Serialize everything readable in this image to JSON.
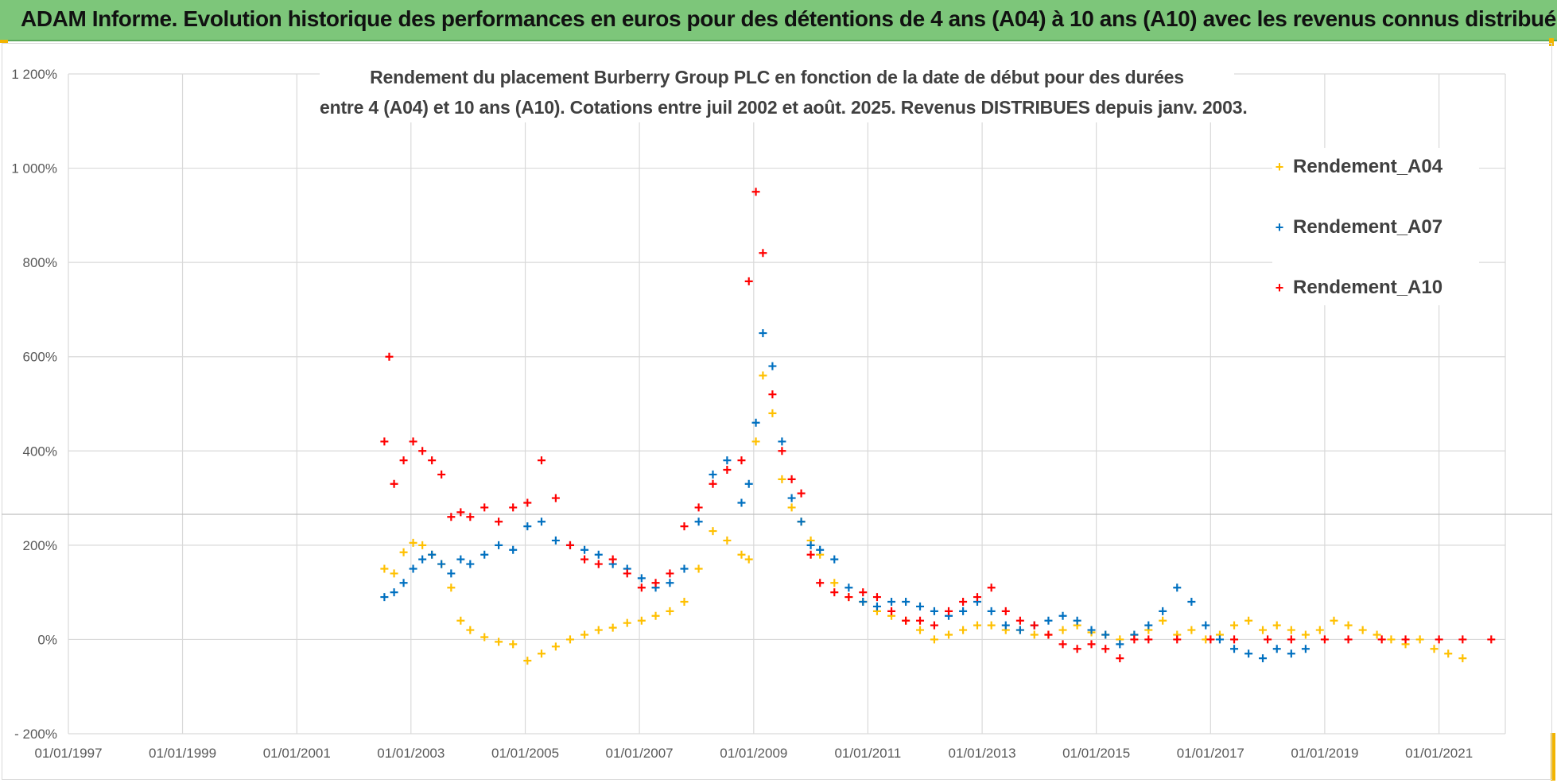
{
  "banner": {
    "title": "ADAM Informe. Evolution historique des performances en euros pour des détentions de 4 ans (A04) à 10 ans (A10) avec les revenus connus distribués"
  },
  "colors": {
    "banner_bg": "#7dc67a",
    "accent_corners": "#f2b400",
    "grid": "#d9d9d9",
    "axis_text": "#595959",
    "title_text": "#404040"
  },
  "chart_data": {
    "type": "scatter",
    "title_line1": "Rendement du placement Burberry Group PLC en fonction de la date de début pour des durées",
    "title_line2": "entre 4 (A04) et 10 ans (A10). Cotations entre juil 2002 et août. 2025. Revenus DISTRIBUES depuis janv. 2003.",
    "xlabel": "",
    "ylabel": "",
    "xlim": [
      "1997-01-01",
      "2022-03-01"
    ],
    "ylim": [
      -200,
      1200
    ],
    "ytick_values": [
      -200,
      0,
      200,
      400,
      600,
      800,
      1000,
      1200
    ],
    "yticks": [
      "- 200%",
      "0%",
      "200%",
      "400%",
      "600%",
      "800%",
      "1 000%",
      "1 200%"
    ],
    "xticks": [
      "01/01/1997",
      "01/01/1999",
      "01/01/2001",
      "01/01/2003",
      "01/01/2005",
      "01/01/2007",
      "01/01/2009",
      "01/01/2011",
      "01/01/2013",
      "01/01/2015",
      "01/01/2017",
      "01/01/2019",
      "01/01/2021"
    ],
    "xtick_dates": [
      "1997-01-01",
      "1999-01-01",
      "2001-01-01",
      "2003-01-01",
      "2005-01-01",
      "2007-01-01",
      "2009-01-01",
      "2011-01-01",
      "2013-01-01",
      "2015-01-01",
      "2017-01-01",
      "2019-01-01",
      "2021-01-01"
    ],
    "grid": true,
    "legend_position": "right",
    "marker": "+",
    "series": [
      {
        "name": "Rendement_A04",
        "color": "#ffc000",
        "x": [
          "2002-07-15",
          "2002-09-15",
          "2002-11-15",
          "2003-01-15",
          "2003-03-15",
          "2003-05-15",
          "2003-07-15",
          "2003-09-15",
          "2003-11-15",
          "2004-01-15",
          "2004-04-15",
          "2004-07-15",
          "2004-10-15",
          "2005-01-15",
          "2005-04-15",
          "2005-07-15",
          "2005-10-15",
          "2006-01-15",
          "2006-04-15",
          "2006-07-15",
          "2006-10-15",
          "2007-01-15",
          "2007-04-15",
          "2007-07-15",
          "2007-10-15",
          "2008-01-15",
          "2008-04-15",
          "2008-07-15",
          "2008-10-15",
          "2008-12-01",
          "2009-01-15",
          "2009-03-01",
          "2009-05-01",
          "2009-07-01",
          "2009-09-01",
          "2009-11-01",
          "2010-01-01",
          "2010-03-01",
          "2010-06-01",
          "2010-09-01",
          "2010-12-01",
          "2011-03-01",
          "2011-06-01",
          "2011-09-01",
          "2011-12-01",
          "2012-03-01",
          "2012-06-01",
          "2012-09-01",
          "2012-12-01",
          "2013-03-01",
          "2013-06-01",
          "2013-09-01",
          "2013-12-01",
          "2014-03-01",
          "2014-06-01",
          "2014-09-01",
          "2014-12-01",
          "2015-03-01",
          "2015-06-01",
          "2015-09-01",
          "2015-12-01",
          "2016-03-01",
          "2016-06-01",
          "2016-09-01",
          "2016-12-01",
          "2017-03-01",
          "2017-06-01",
          "2017-09-01",
          "2017-12-01",
          "2018-03-01",
          "2018-06-01",
          "2018-09-01",
          "2018-12-01",
          "2019-03-01",
          "2019-06-01",
          "2019-09-01",
          "2019-12-01",
          "2020-03-01",
          "2020-06-01",
          "2020-09-01",
          "2020-12-01",
          "2021-03-01",
          "2021-06-01"
        ],
        "y": [
          150,
          140,
          185,
          205,
          200,
          180,
          160,
          110,
          40,
          20,
          5,
          -5,
          -10,
          -45,
          -30,
          -15,
          0,
          10,
          20,
          25,
          35,
          40,
          50,
          60,
          80,
          150,
          230,
          210,
          180,
          170,
          420,
          560,
          480,
          340,
          280,
          250,
          210,
          180,
          120,
          90,
          80,
          60,
          50,
          40,
          20,
          0,
          10,
          20,
          30,
          30,
          20,
          20,
          10,
          10,
          20,
          30,
          15,
          10,
          0,
          10,
          20,
          40,
          10,
          20,
          0,
          10,
          30,
          40,
          20,
          30,
          20,
          10,
          20,
          40,
          30,
          20,
          10,
          0,
          -10,
          0,
          -20,
          -30,
          -40
        ]
      },
      {
        "name": "Rendement_A07",
        "color": "#0070c0",
        "x": [
          "2002-07-15",
          "2002-09-15",
          "2002-11-15",
          "2003-01-15",
          "2003-03-15",
          "2003-05-15",
          "2003-07-15",
          "2003-09-15",
          "2003-11-15",
          "2004-01-15",
          "2004-04-15",
          "2004-07-15",
          "2004-10-15",
          "2005-01-15",
          "2005-04-15",
          "2005-07-15",
          "2005-10-15",
          "2006-01-15",
          "2006-04-15",
          "2006-07-15",
          "2006-10-15",
          "2007-01-15",
          "2007-04-15",
          "2007-07-15",
          "2007-10-15",
          "2008-01-15",
          "2008-04-15",
          "2008-07-15",
          "2008-10-15",
          "2008-12-01",
          "2009-01-15",
          "2009-03-01",
          "2009-05-01",
          "2009-07-01",
          "2009-09-01",
          "2009-11-01",
          "2010-01-01",
          "2010-03-01",
          "2010-06-01",
          "2010-09-01",
          "2010-12-01",
          "2011-03-01",
          "2011-06-01",
          "2011-09-01",
          "2011-12-01",
          "2012-03-01",
          "2012-06-01",
          "2012-09-01",
          "2012-12-01",
          "2013-03-01",
          "2013-06-01",
          "2013-09-01",
          "2013-12-01",
          "2014-03-01",
          "2014-06-01",
          "2014-09-01",
          "2014-12-01",
          "2015-03-01",
          "2015-06-01",
          "2015-09-01",
          "2015-12-01",
          "2016-03-01",
          "2016-06-01",
          "2016-09-01",
          "2016-12-01",
          "2017-03-01",
          "2017-06-01",
          "2017-09-01",
          "2017-12-01",
          "2018-03-01",
          "2018-06-01",
          "2018-09-01"
        ],
        "y": [
          90,
          100,
          120,
          150,
          170,
          180,
          160,
          140,
          170,
          160,
          180,
          200,
          190,
          240,
          250,
          210,
          200,
          190,
          180,
          160,
          150,
          130,
          110,
          120,
          150,
          250,
          350,
          380,
          290,
          330,
          460,
          650,
          580,
          420,
          300,
          250,
          200,
          190,
          170,
          110,
          80,
          70,
          80,
          80,
          70,
          60,
          50,
          60,
          80,
          60,
          30,
          20,
          30,
          40,
          50,
          40,
          20,
          10,
          -10,
          10,
          30,
          60,
          110,
          80,
          30,
          0,
          -20,
          -30,
          -40,
          -20,
          -30,
          -20
        ]
      },
      {
        "name": "Rendement_A10",
        "color": "#ff0000",
        "x": [
          "2002-07-15",
          "2002-08-15",
          "2002-09-15",
          "2002-11-15",
          "2003-01-15",
          "2003-03-15",
          "2003-05-15",
          "2003-07-15",
          "2003-09-15",
          "2003-11-15",
          "2004-01-15",
          "2004-04-15",
          "2004-07-15",
          "2004-10-15",
          "2005-01-15",
          "2005-04-15",
          "2005-07-15",
          "2005-10-15",
          "2006-01-15",
          "2006-04-15",
          "2006-07-15",
          "2006-10-15",
          "2007-01-15",
          "2007-04-15",
          "2007-07-15",
          "2007-10-15",
          "2008-01-15",
          "2008-04-15",
          "2008-07-15",
          "2008-10-15",
          "2008-12-01",
          "2009-01-15",
          "2009-03-01",
          "2009-05-01",
          "2009-07-01",
          "2009-09-01",
          "2009-11-01",
          "2010-01-01",
          "2010-03-01",
          "2010-06-01",
          "2010-09-01",
          "2010-12-01",
          "2011-03-01",
          "2011-06-01",
          "2011-09-01",
          "2011-12-01",
          "2012-03-01",
          "2012-06-01",
          "2012-09-01",
          "2012-12-01",
          "2013-03-01",
          "2013-06-01",
          "2013-09-01",
          "2013-12-01",
          "2014-03-01",
          "2014-06-01",
          "2014-09-01",
          "2014-12-01",
          "2015-03-01",
          "2015-06-01",
          "2015-09-01",
          "2015-12-01",
          "2016-06-01",
          "2017-01-01",
          "2017-06-01",
          "2018-01-01",
          "2018-06-01",
          "2019-01-01",
          "2019-06-01",
          "2020-01-01",
          "2020-06-01",
          "2021-01-01",
          "2021-06-01",
          "2021-12-01"
        ],
        "y": [
          420,
          600,
          330,
          380,
          420,
          400,
          380,
          350,
          260,
          270,
          260,
          280,
          250,
          280,
          290,
          380,
          300,
          200,
          170,
          160,
          170,
          140,
          110,
          120,
          140,
          240,
          280,
          330,
          360,
          380,
          760,
          950,
          820,
          520,
          400,
          340,
          310,
          180,
          120,
          100,
          90,
          100,
          90,
          60,
          40,
          40,
          30,
          60,
          80,
          90,
          110,
          60,
          40,
          30,
          10,
          -10,
          -20,
          -10,
          -20,
          -40,
          0,
          0,
          0,
          0,
          0,
          0,
          0,
          0,
          0,
          0,
          0,
          0,
          0,
          0
        ]
      }
    ]
  }
}
